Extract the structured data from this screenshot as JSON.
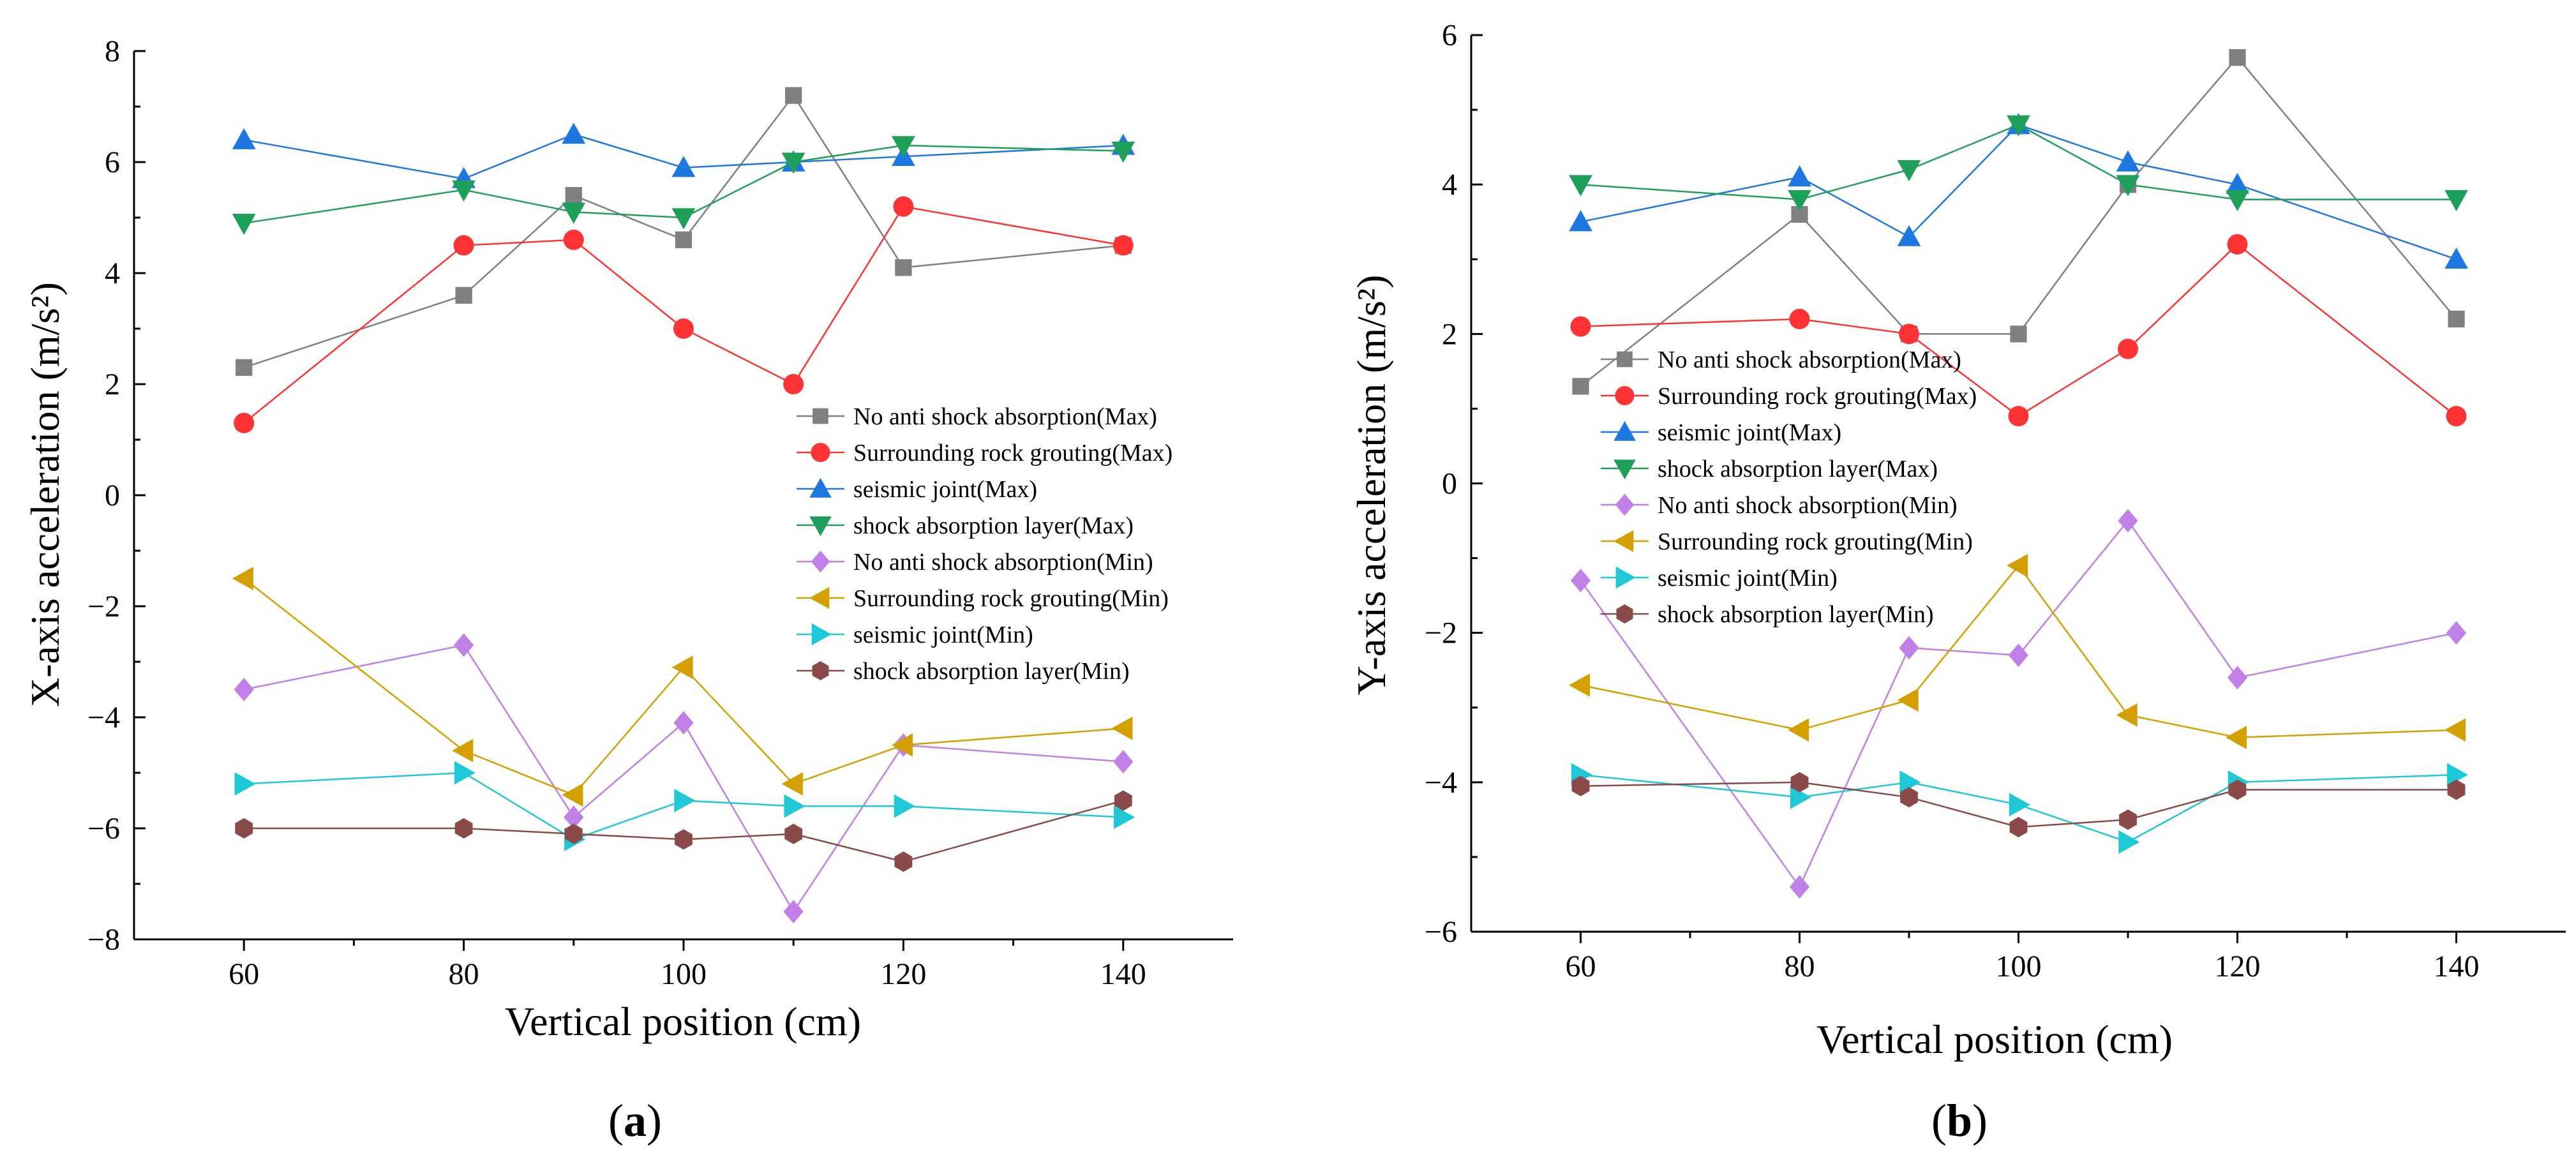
{
  "chart_data": [
    {
      "type": "line",
      "panel": "a",
      "panel_label": "a",
      "xlabel": "Vertical position (cm)",
      "ylabel": "X-axis acceleration (m/s²)",
      "xlim": [
        50,
        150
      ],
      "ylim": [
        -8,
        8
      ],
      "x_ticks": [
        60,
        80,
        100,
        120,
        140
      ],
      "y_ticks": [
        -8,
        -6,
        -4,
        -2,
        0,
        2,
        4,
        6,
        8
      ],
      "x_tick_labels": [
        "60",
        "80",
        "100",
        "120",
        "140"
      ],
      "y_tick_labels": [
        "−8",
        "−6",
        "−4",
        "−2",
        "0",
        "2",
        "4",
        "6",
        "8"
      ],
      "x": [
        60,
        80,
        90,
        100,
        110,
        120,
        140
      ],
      "legend_position": "center-right",
      "series": [
        {
          "name": "No anti shock absorption(Max)",
          "color": "#808080",
          "marker": "square",
          "values": [
            2.3,
            3.6,
            5.4,
            4.6,
            7.2,
            4.1,
            4.5
          ]
        },
        {
          "name": "Surrounding rock grouting(Max)",
          "color": "#ff3333",
          "marker": "circle",
          "values": [
            1.3,
            4.5,
            4.6,
            3.0,
            2.0,
            5.2,
            4.5
          ]
        },
        {
          "name": "seismic joint(Max)",
          "color": "#1f77e0",
          "marker": "triangle-up",
          "values": [
            6.4,
            5.7,
            6.5,
            5.9,
            6.0,
            6.1,
            6.3
          ]
        },
        {
          "name": "shock absorption layer(Max)",
          "color": "#1ea05a",
          "marker": "triangle-down",
          "values": [
            4.9,
            5.5,
            5.1,
            5.0,
            6.0,
            6.3,
            6.2
          ]
        },
        {
          "name": "No anti shock absorption(Min)",
          "color": "#c080e6",
          "marker": "diamond",
          "values": [
            -3.5,
            -2.7,
            -5.8,
            -4.1,
            -7.5,
            -4.5,
            -4.8
          ]
        },
        {
          "name": "Surrounding rock grouting(Min)",
          "color": "#d4a000",
          "marker": "triangle-left",
          "values": [
            -1.5,
            -4.6,
            -5.4,
            -3.1,
            -5.2,
            -4.5,
            -4.2
          ]
        },
        {
          "name": "seismic joint(Min)",
          "color": "#1fc8d6",
          "marker": "triangle-right",
          "values": [
            -5.2,
            -5.0,
            -6.2,
            -5.5,
            -5.6,
            -5.6,
            -5.8
          ]
        },
        {
          "name": "shock absorption layer(Min)",
          "color": "#8b4a4a",
          "marker": "hexagon",
          "values": [
            -6.0,
            -6.0,
            -6.1,
            -6.2,
            -6.1,
            -6.6,
            -5.5
          ]
        }
      ]
    },
    {
      "type": "line",
      "panel": "b",
      "panel_label": "b",
      "xlabel": "Vertical position (cm)",
      "ylabel": "Y-axis acceleration (m/s²)",
      "xlim": [
        50,
        150
      ],
      "ylim": [
        -6,
        6
      ],
      "x_ticks": [
        60,
        80,
        100,
        120,
        140
      ],
      "y_ticks": [
        -6,
        -4,
        -2,
        0,
        2,
        4,
        6
      ],
      "x_tick_labels": [
        "60",
        "80",
        "100",
        "120",
        "140"
      ],
      "y_tick_labels": [
        "−6",
        "−4",
        "−2",
        "0",
        "2",
        "4",
        "6"
      ],
      "x": [
        60,
        80,
        90,
        100,
        110,
        120,
        140
      ],
      "legend_position": "center-left",
      "series": [
        {
          "name": "No anti shock absorption(Max)",
          "color": "#808080",
          "marker": "square",
          "values": [
            1.3,
            3.6,
            2.0,
            2.0,
            4.0,
            5.7,
            2.2
          ]
        },
        {
          "name": "Surrounding rock grouting(Max)",
          "color": "#ff3333",
          "marker": "circle",
          "values": [
            2.1,
            2.2,
            2.0,
            0.9,
            1.8,
            3.2,
            0.9
          ]
        },
        {
          "name": "seismic joint(Max)",
          "color": "#1f77e0",
          "marker": "triangle-up",
          "values": [
            3.5,
            4.1,
            3.3,
            4.8,
            4.3,
            4.0,
            3.0
          ]
        },
        {
          "name": "shock absorption layer(Max)",
          "color": "#1ea05a",
          "marker": "triangle-down",
          "values": [
            4.0,
            3.8,
            4.2,
            4.8,
            4.0,
            3.8,
            3.8
          ]
        },
        {
          "name": "No anti shock absorption(Min)",
          "color": "#c080e6",
          "marker": "diamond",
          "values": [
            -1.3,
            -5.4,
            -2.2,
            -2.3,
            -0.5,
            -2.6,
            -2.0
          ]
        },
        {
          "name": "Surrounding rock grouting(Min)",
          "color": "#d4a000",
          "marker": "triangle-left",
          "values": [
            -2.7,
            -3.3,
            -2.9,
            -1.1,
            -3.1,
            -3.4,
            -3.3
          ]
        },
        {
          "name": "seismic joint(Min)",
          "color": "#1fc8d6",
          "marker": "triangle-right",
          "values": [
            -3.9,
            -4.2,
            -4.0,
            -4.3,
            -4.8,
            -4.0,
            -3.9
          ]
        },
        {
          "name": "shock absorption layer(Min)",
          "color": "#8b4a4a",
          "marker": "hexagon",
          "values": [
            -4.05,
            -4.0,
            -4.2,
            -4.6,
            -4.5,
            -4.1,
            -4.1
          ]
        }
      ]
    }
  ]
}
